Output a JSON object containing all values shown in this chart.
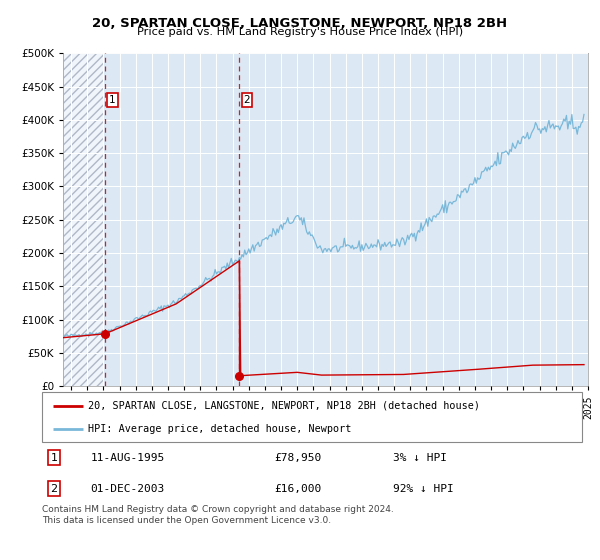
{
  "title1": "20, SPARTAN CLOSE, LANGSTONE, NEWPORT, NP18 2BH",
  "title2": "Price paid vs. HM Land Registry's House Price Index (HPI)",
  "legend_line1": "20, SPARTAN CLOSE, LANGSTONE, NEWPORT, NP18 2BH (detached house)",
  "legend_line2": "HPI: Average price, detached house, Newport",
  "transaction1": {
    "label": "1",
    "date_x": 1995.6,
    "price": 78950,
    "date_str": "11-AUG-1995",
    "price_str": "£78,950",
    "pct_str": "3% ↓ HPI"
  },
  "transaction2": {
    "label": "2",
    "date_x": 2003.92,
    "price": 16000,
    "date_str": "01-DEC-2003",
    "price_str": "£16,000",
    "pct_str": "92% ↓ HPI"
  },
  "footnote": "Contains HM Land Registry data © Crown copyright and database right 2024.\nThis data is licensed under the Open Government Licence v3.0.",
  "hpi_color": "#7ab8d9",
  "price_color": "#cc0000",
  "bg_shade_color": "#dce9f5",
  "ylim": [
    0,
    500000
  ],
  "yticks": [
    0,
    50000,
    100000,
    150000,
    200000,
    250000,
    300000,
    350000,
    400000,
    450000,
    500000
  ],
  "xmin": 1993.0,
  "xmax": 2025.5,
  "hatch_start": 1993.0,
  "hatch_end": 1995.5,
  "shade_start": 1995.5,
  "shade_end": 2004.1
}
